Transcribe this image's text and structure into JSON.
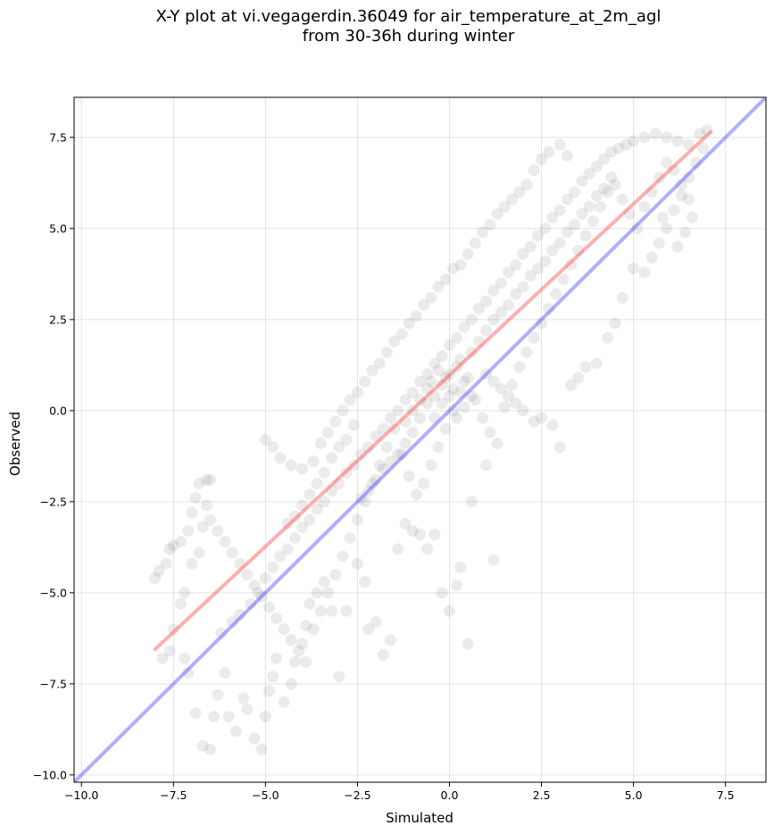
{
  "chart_data": {
    "type": "scatter",
    "title": "X-Y plot at vi.vegagerdin.36049 for air_temperature_at_2m_agl",
    "subtitle": "from 30-36h during winter",
    "xlabel": "Simulated",
    "ylabel": "Observed",
    "xlim": [
      -10.2,
      8.6
    ],
    "ylim": [
      -10.2,
      8.6
    ],
    "x_ticks": [
      "−10.0",
      "−7.5",
      "−5.0",
      "−2.5",
      "0.0",
      "2.5",
      "5.0",
      "7.5"
    ],
    "y_ticks": [
      "−10.0",
      "−7.5",
      "−5.0",
      "−2.5",
      "0.0",
      "2.5",
      "5.0",
      "7.5"
    ],
    "grid": true,
    "point_color": "#000000",
    "point_alpha": 0.08,
    "points": [
      [
        -8.0,
        -4.6
      ],
      [
        -7.9,
        -4.4
      ],
      [
        -7.7,
        -4.2
      ],
      [
        -7.6,
        -3.8
      ],
      [
        -7.5,
        -3.7
      ],
      [
        -7.3,
        -3.6
      ],
      [
        -7.1,
        -3.3
      ],
      [
        -7.0,
        -2.8
      ],
      [
        -6.9,
        -2.4
      ],
      [
        -6.8,
        -2.0
      ],
      [
        -6.6,
        -1.9
      ],
      [
        -6.5,
        -1.9
      ],
      [
        -6.6,
        -2.6
      ],
      [
        -6.7,
        -3.2
      ],
      [
        -6.8,
        -3.9
      ],
      [
        -7.0,
        -4.2
      ],
      [
        -7.2,
        -5.0
      ],
      [
        -7.3,
        -5.3
      ],
      [
        -7.5,
        -6.0
      ],
      [
        -7.6,
        -6.6
      ],
      [
        -7.8,
        -6.8
      ],
      [
        -7.2,
        -6.8
      ],
      [
        -7.1,
        -7.2
      ],
      [
        -6.9,
        -8.3
      ],
      [
        -6.7,
        -9.2
      ],
      [
        -6.5,
        -9.3
      ],
      [
        -6.4,
        -8.4
      ],
      [
        -6.3,
        -7.8
      ],
      [
        -6.1,
        -7.2
      ],
      [
        -6.0,
        -8.4
      ],
      [
        -5.8,
        -8.8
      ],
      [
        -5.6,
        -7.9
      ],
      [
        -5.5,
        -8.2
      ],
      [
        -5.3,
        -9.0
      ],
      [
        -5.1,
        -9.3
      ],
      [
        -5.0,
        -8.4
      ],
      [
        -4.9,
        -7.7
      ],
      [
        -4.8,
        -7.3
      ],
      [
        -4.7,
        -6.8
      ],
      [
        -4.5,
        -8.0
      ],
      [
        -4.3,
        -7.5
      ],
      [
        -4.2,
        -6.9
      ],
      [
        -4.0,
        -6.4
      ],
      [
        -3.9,
        -5.9
      ],
      [
        -3.8,
        -5.3
      ],
      [
        -3.6,
        -5.0
      ],
      [
        -3.4,
        -4.7
      ],
      [
        -3.2,
        -5.5
      ],
      [
        -3.0,
        -7.3
      ],
      [
        -2.8,
        -5.5
      ],
      [
        -2.5,
        -4.2
      ],
      [
        -2.3,
        -4.7
      ],
      [
        -2.2,
        -6.0
      ],
      [
        -2.0,
        -5.8
      ],
      [
        -1.8,
        -6.7
      ],
      [
        -1.6,
        -6.3
      ],
      [
        -1.4,
        -3.8
      ],
      [
        -1.2,
        -3.1
      ],
      [
        -1.0,
        -3.3
      ],
      [
        -0.8,
        -3.4
      ],
      [
        -0.6,
        -3.8
      ],
      [
        -0.4,
        -3.4
      ],
      [
        -0.2,
        -5.0
      ],
      [
        0.0,
        -5.5
      ],
      [
        0.2,
        -4.8
      ],
      [
        0.3,
        -4.3
      ],
      [
        0.5,
        -6.4
      ],
      [
        0.6,
        -2.5
      ],
      [
        1.0,
        -1.5
      ],
      [
        1.2,
        -4.1
      ],
      [
        -6.2,
        -6.1
      ],
      [
        -5.9,
        -5.8
      ],
      [
        -5.7,
        -5.6
      ],
      [
        -5.4,
        -5.3
      ],
      [
        -5.2,
        -5.0
      ],
      [
        -5.0,
        -4.6
      ],
      [
        -4.8,
        -4.3
      ],
      [
        -4.6,
        -4.0
      ],
      [
        -4.4,
        -3.8
      ],
      [
        -4.2,
        -3.5
      ],
      [
        -4.0,
        -3.2
      ],
      [
        -3.8,
        -3.0
      ],
      [
        -3.6,
        -2.7
      ],
      [
        -3.4,
        -2.5
      ],
      [
        -3.2,
        -2.2
      ],
      [
        -3.0,
        -2.0
      ],
      [
        -2.8,
        -1.7
      ],
      [
        -2.6,
        -1.5
      ],
      [
        -2.4,
        -1.2
      ],
      [
        -2.2,
        -1.0
      ],
      [
        -2.0,
        -0.7
      ],
      [
        -1.8,
        -0.5
      ],
      [
        -1.6,
        -0.2
      ],
      [
        -1.4,
        0.0
      ],
      [
        -1.2,
        0.3
      ],
      [
        -1.0,
        0.5
      ],
      [
        -0.8,
        0.8
      ],
      [
        -0.6,
        1.0
      ],
      [
        -0.4,
        1.3
      ],
      [
        -0.2,
        1.5
      ],
      [
        0.0,
        1.8
      ],
      [
        0.2,
        2.0
      ],
      [
        0.4,
        2.3
      ],
      [
        0.6,
        2.5
      ],
      [
        0.8,
        2.8
      ],
      [
        1.0,
        3.0
      ],
      [
        1.2,
        3.3
      ],
      [
        1.4,
        3.5
      ],
      [
        1.6,
        3.8
      ],
      [
        1.8,
        4.0
      ],
      [
        2.0,
        4.3
      ],
      [
        2.2,
        4.5
      ],
      [
        2.4,
        4.8
      ],
      [
        2.6,
        5.0
      ],
      [
        2.8,
        5.3
      ],
      [
        3.0,
        5.5
      ],
      [
        3.2,
        5.8
      ],
      [
        3.4,
        6.0
      ],
      [
        3.6,
        6.3
      ],
      [
        3.8,
        6.5
      ],
      [
        4.0,
        6.7
      ],
      [
        4.2,
        6.9
      ],
      [
        4.4,
        7.1
      ],
      [
        4.6,
        7.2
      ],
      [
        4.8,
        7.3
      ],
      [
        5.0,
        7.4
      ],
      [
        5.3,
        7.5
      ],
      [
        5.6,
        7.6
      ],
      [
        5.9,
        7.5
      ],
      [
        6.2,
        7.4
      ],
      [
        6.5,
        7.3
      ],
      [
        6.8,
        7.6
      ],
      [
        7.0,
        7.7
      ],
      [
        6.9,
        7.2
      ],
      [
        6.7,
        6.8
      ],
      [
        6.5,
        6.4
      ],
      [
        6.3,
        5.9
      ],
      [
        6.1,
        5.5
      ],
      [
        5.9,
        5.0
      ],
      [
        5.7,
        4.6
      ],
      [
        5.5,
        4.2
      ],
      [
        5.3,
        3.8
      ],
      [
        5.0,
        3.9
      ],
      [
        4.7,
        3.1
      ],
      [
        4.5,
        2.4
      ],
      [
        4.3,
        2.0
      ],
      [
        4.0,
        1.3
      ],
      [
        3.7,
        1.2
      ],
      [
        3.5,
        0.9
      ],
      [
        3.3,
        0.7
      ],
      [
        3.0,
        -1.0
      ],
      [
        2.8,
        -0.4
      ],
      [
        2.5,
        -0.2
      ],
      [
        2.3,
        -0.3
      ],
      [
        2.0,
        0.0
      ],
      [
        1.8,
        0.2
      ],
      [
        1.6,
        0.4
      ],
      [
        1.4,
        0.6
      ],
      [
        1.2,
        0.8
      ],
      [
        1.0,
        1.0
      ],
      [
        -5.0,
        -0.8
      ],
      [
        -4.8,
        -1.0
      ],
      [
        -4.6,
        -1.3
      ],
      [
        -4.3,
        -1.5
      ],
      [
        -4.0,
        -1.6
      ],
      [
        -3.7,
        -1.4
      ],
      [
        -3.5,
        -0.9
      ],
      [
        -3.3,
        -0.6
      ],
      [
        -3.1,
        -0.3
      ],
      [
        -2.9,
        0.0
      ],
      [
        -2.7,
        0.3
      ],
      [
        -2.5,
        0.5
      ],
      [
        -2.3,
        0.8
      ],
      [
        -2.1,
        1.1
      ],
      [
        -1.9,
        1.3
      ],
      [
        -1.7,
        1.6
      ],
      [
        -1.5,
        1.9
      ],
      [
        -1.3,
        2.1
      ],
      [
        -1.1,
        2.4
      ],
      [
        -0.9,
        2.6
      ],
      [
        -0.7,
        2.9
      ],
      [
        -0.5,
        3.1
      ],
      [
        -0.3,
        3.4
      ],
      [
        -0.1,
        3.6
      ],
      [
        0.1,
        3.9
      ],
      [
        0.3,
        4.0
      ],
      [
        0.5,
        4.3
      ],
      [
        0.7,
        4.6
      ],
      [
        0.9,
        4.9
      ],
      [
        1.1,
        5.1
      ],
      [
        1.3,
        5.4
      ],
      [
        1.5,
        5.6
      ],
      [
        1.7,
        5.8
      ],
      [
        1.9,
        6.0
      ],
      [
        2.1,
        6.2
      ],
      [
        2.3,
        6.6
      ],
      [
        2.5,
        6.9
      ],
      [
        2.7,
        7.1
      ],
      [
        3.0,
        7.3
      ],
      [
        3.2,
        7.0
      ],
      [
        -6.5,
        -3.0
      ],
      [
        -6.3,
        -3.3
      ],
      [
        -6.1,
        -3.6
      ],
      [
        -5.9,
        -3.9
      ],
      [
        -5.7,
        -4.2
      ],
      [
        -5.5,
        -4.5
      ],
      [
        -5.3,
        -4.8
      ],
      [
        -5.1,
        -5.1
      ],
      [
        -4.9,
        -5.4
      ],
      [
        -4.7,
        -5.7
      ],
      [
        -4.5,
        -6.0
      ],
      [
        -4.3,
        -6.3
      ],
      [
        -4.1,
        -6.6
      ],
      [
        -3.9,
        -6.9
      ],
      [
        -3.7,
        -6.0
      ],
      [
        -3.5,
        -5.5
      ],
      [
        -3.3,
        -5.0
      ],
      [
        -3.1,
        -4.5
      ],
      [
        -2.9,
        -4.0
      ],
      [
        -2.7,
        -3.5
      ],
      [
        -2.5,
        -3.0
      ],
      [
        -2.3,
        -2.5
      ],
      [
        -2.1,
        -2.0
      ],
      [
        -1.9,
        -1.5
      ],
      [
        -1.7,
        -1.0
      ],
      [
        -1.5,
        -0.5
      ],
      [
        -1.3,
        -1.2
      ],
      [
        -1.1,
        -1.8
      ],
      [
        -0.9,
        -2.3
      ],
      [
        -0.7,
        -2.0
      ],
      [
        -0.5,
        -1.5
      ],
      [
        -0.3,
        -1.0
      ],
      [
        -0.1,
        -0.5
      ],
      [
        0.1,
        0.0
      ],
      [
        0.3,
        0.5
      ],
      [
        0.5,
        0.9
      ],
      [
        0.7,
        0.3
      ],
      [
        0.9,
        -0.2
      ],
      [
        1.1,
        -0.6
      ],
      [
        1.3,
        -0.9
      ],
      [
        1.5,
        0.1
      ],
      [
        1.7,
        0.7
      ],
      [
        1.9,
        1.2
      ],
      [
        2.1,
        1.6
      ],
      [
        2.3,
        2.0
      ],
      [
        2.5,
        2.4
      ],
      [
        2.7,
        2.8
      ],
      [
        2.9,
        3.2
      ],
      [
        3.1,
        3.6
      ],
      [
        3.3,
        4.0
      ],
      [
        3.5,
        4.4
      ],
      [
        3.7,
        4.8
      ],
      [
        3.9,
        5.2
      ],
      [
        4.1,
        5.6
      ],
      [
        4.3,
        6.0
      ],
      [
        4.5,
        6.2
      ],
      [
        4.7,
        5.8
      ],
      [
        4.9,
        5.4
      ],
      [
        5.1,
        5.0
      ],
      [
        5.3,
        5.6
      ],
      [
        5.5,
        6.0
      ],
      [
        5.7,
        6.4
      ],
      [
        5.9,
        6.8
      ],
      [
        6.1,
        6.6
      ],
      [
        6.3,
        6.2
      ],
      [
        6.5,
        5.8
      ],
      [
        6.6,
        5.3
      ],
      [
        6.4,
        4.9
      ],
      [
        6.2,
        4.5
      ],
      [
        5.8,
        5.3
      ],
      [
        -0.4,
        0.4
      ],
      [
        -0.2,
        0.7
      ],
      [
        0.0,
        1.0
      ],
      [
        0.2,
        1.2
      ],
      [
        -0.3,
        1.1
      ],
      [
        0.1,
        0.6
      ],
      [
        -0.1,
        0.9
      ],
      [
        0.3,
        1.4
      ],
      [
        -0.5,
        0.8
      ],
      [
        0.4,
        0.8
      ],
      [
        -0.6,
        0.2
      ],
      [
        -0.8,
        -0.2
      ],
      [
        -1.0,
        -0.6
      ],
      [
        -1.2,
        -0.9
      ],
      [
        -1.4,
        -1.2
      ],
      [
        -1.6,
        -1.4
      ],
      [
        -1.8,
        -1.6
      ],
      [
        -2.0,
        -1.9
      ],
      [
        -2.2,
        -2.2
      ],
      [
        -2.4,
        -2.4
      ],
      [
        0.6,
        1.6
      ],
      [
        0.8,
        1.9
      ],
      [
        1.0,
        2.2
      ],
      [
        1.2,
        2.5
      ],
      [
        1.4,
        2.7
      ],
      [
        1.6,
        2.9
      ],
      [
        1.8,
        3.2
      ],
      [
        2.0,
        3.4
      ],
      [
        2.2,
        3.7
      ],
      [
        2.4,
        3.9
      ],
      [
        2.6,
        4.1
      ],
      [
        2.8,
        4.4
      ],
      [
        3.0,
        4.6
      ],
      [
        3.2,
        4.9
      ],
      [
        3.4,
        5.1
      ],
      [
        3.6,
        5.4
      ],
      [
        3.8,
        5.6
      ],
      [
        4.0,
        5.9
      ],
      [
        4.2,
        6.1
      ],
      [
        4.4,
        6.4
      ],
      [
        -3.0,
        -1.0
      ],
      [
        -3.2,
        -1.3
      ],
      [
        -2.8,
        -0.8
      ],
      [
        -2.6,
        -0.4
      ],
      [
        -3.4,
        -1.7
      ],
      [
        -3.6,
        -2.0
      ],
      [
        -3.8,
        -2.3
      ],
      [
        -4.0,
        -2.6
      ],
      [
        -4.2,
        -2.9
      ],
      [
        -4.4,
        -3.1
      ],
      [
        -1.0,
        0.0
      ],
      [
        -0.8,
        0.3
      ],
      [
        -1.2,
        -0.3
      ],
      [
        -0.6,
        0.6
      ],
      [
        -0.4,
        -0.2
      ],
      [
        -0.2,
        0.2
      ],
      [
        0.0,
        0.4
      ],
      [
        0.2,
        -0.2
      ],
      [
        0.4,
        0.1
      ],
      [
        0.6,
        0.4
      ]
    ],
    "lines": [
      {
        "name": "",
        "color": "#ff4d4d",
        "alpha": 0.45,
        "x": [
          -8.0,
          7.1
        ],
        "y": [
          -6.55,
          7.65
        ]
      },
      {
        "name": "",
        "color": "#4d4dff",
        "alpha": 0.45,
        "x": [
          -10.2,
          8.6
        ],
        "y": [
          -10.2,
          8.6
        ]
      }
    ]
  }
}
